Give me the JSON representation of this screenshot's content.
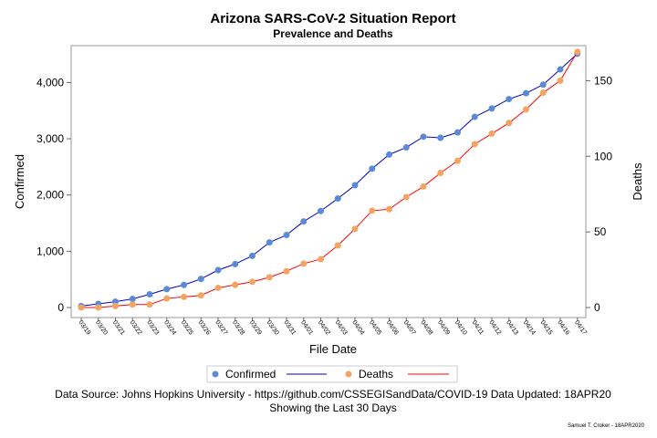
{
  "chart_data": {
    "type": "line",
    "title": "Arizona SARS-CoV-2 Situation Report",
    "subtitle": "Prevalence and Deaths",
    "xlabel": "File Date",
    "ylabel": "Confirmed",
    "y2label": "Deaths",
    "categories": [
      "03/19",
      "03/20",
      "03/21",
      "03/22",
      "03/23",
      "03/24",
      "03/25",
      "03/26",
      "03/27",
      "03/28",
      "03/29",
      "03/30",
      "03/31",
      "04/01",
      "04/02",
      "04/03",
      "04/04",
      "04/05",
      "04/06",
      "04/07",
      "04/08",
      "04/09",
      "04/10",
      "04/11",
      "04/12",
      "04/13",
      "04/14",
      "04/15",
      "04/16",
      "04/17"
    ],
    "ylim": [
      0,
      4600
    ],
    "y2lim": [
      0,
      170
    ],
    "yticks": [
      "0",
      "1,000",
      "2,000",
      "3,000",
      "4,000"
    ],
    "y2ticks": [
      "0",
      "50",
      "100",
      "150"
    ],
    "y_tick_values": [
      0,
      1000,
      2000,
      3000,
      4000
    ],
    "y2_tick_values": [
      0,
      50,
      100,
      150
    ],
    "grid": false,
    "legend_placement": "bottom",
    "series": [
      {
        "name": "Confirmed",
        "axis": "left",
        "marker_color": "#5b8ad4",
        "line_color": "#0000cc",
        "values": [
          27,
          65,
          104,
          152,
          235,
          326,
          401,
          508,
          665,
          773,
          919,
          1157,
          1289,
          1530,
          1715,
          1937,
          2173,
          2467,
          2719,
          2846,
          3036,
          3017,
          3112,
          3390,
          3539,
          3705,
          3809,
          3962,
          4234,
          4511
        ]
      },
      {
        "name": "Deaths",
        "axis": "right",
        "marker_color": "#f4a460",
        "line_color": "#ff0000",
        "values": [
          0,
          0,
          1,
          2,
          2,
          6,
          7,
          8,
          13,
          15,
          17,
          20,
          24,
          29,
          32,
          41,
          52,
          64,
          65,
          73,
          80,
          89,
          97,
          108,
          115,
          122,
          131,
          142,
          150,
          169
        ]
      }
    ]
  },
  "footnote_line1": "Data Source: Johns Hopkins University - https://github.com/CSSEGISandData/COVID-19 Data Updated: 18APR20",
  "footnote_line2": "Showing the Last 30 Days",
  "credit": "Samuel T. Croker - 18APR2020"
}
